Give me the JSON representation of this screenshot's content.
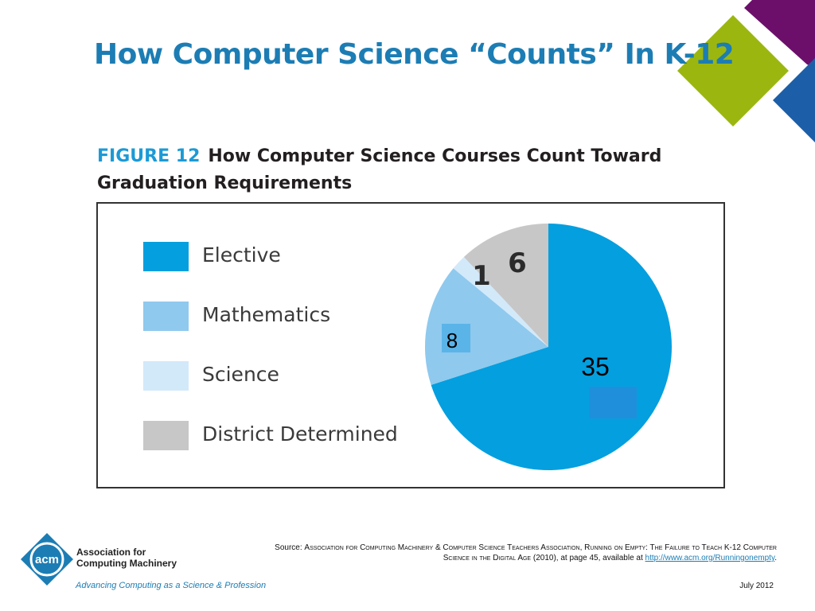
{
  "slide": {
    "title": "How Computer Science “Counts” In K-12",
    "colors": {
      "title": "#1C7DB4",
      "purple": "#6C0F6B",
      "green": "#9BB70F",
      "blue": "#1C5FA8"
    }
  },
  "figure": {
    "number": "FIGURE 12",
    "heading_line1": "How Computer Science Courses Count Toward",
    "heading_line2": "Graduation Requirements"
  },
  "chart_data": {
    "type": "pie",
    "categories": [
      "Elective",
      "Mathematics",
      "Science",
      "District Determined"
    ],
    "values": [
      35,
      8,
      1,
      6
    ],
    "colors": [
      "#049FDF",
      "#8FC9EE",
      "#D2E9FA",
      "#C7C7C7"
    ],
    "legend_position": "left",
    "data_labels": [
      "35",
      "8",
      "1",
      "6"
    ]
  },
  "footer": {
    "logo_text": "acm",
    "org_line1": "Association for",
    "org_line2": "Computing Machinery",
    "tagline": "Advancing Computing as a Science & Profession",
    "source_prefix": "Source: ",
    "source_title": "Association for Computing Machinery & Computer Science Teachers Association, Running on Empty: The Failure to Teach K-12 Computer Science in the Digital Age",
    "source_suffix": " (2010), at page 45, available at ",
    "source_link": "http://www.acm.org/Runningonempty",
    "source_end": ".",
    "date": "July 2012"
  }
}
